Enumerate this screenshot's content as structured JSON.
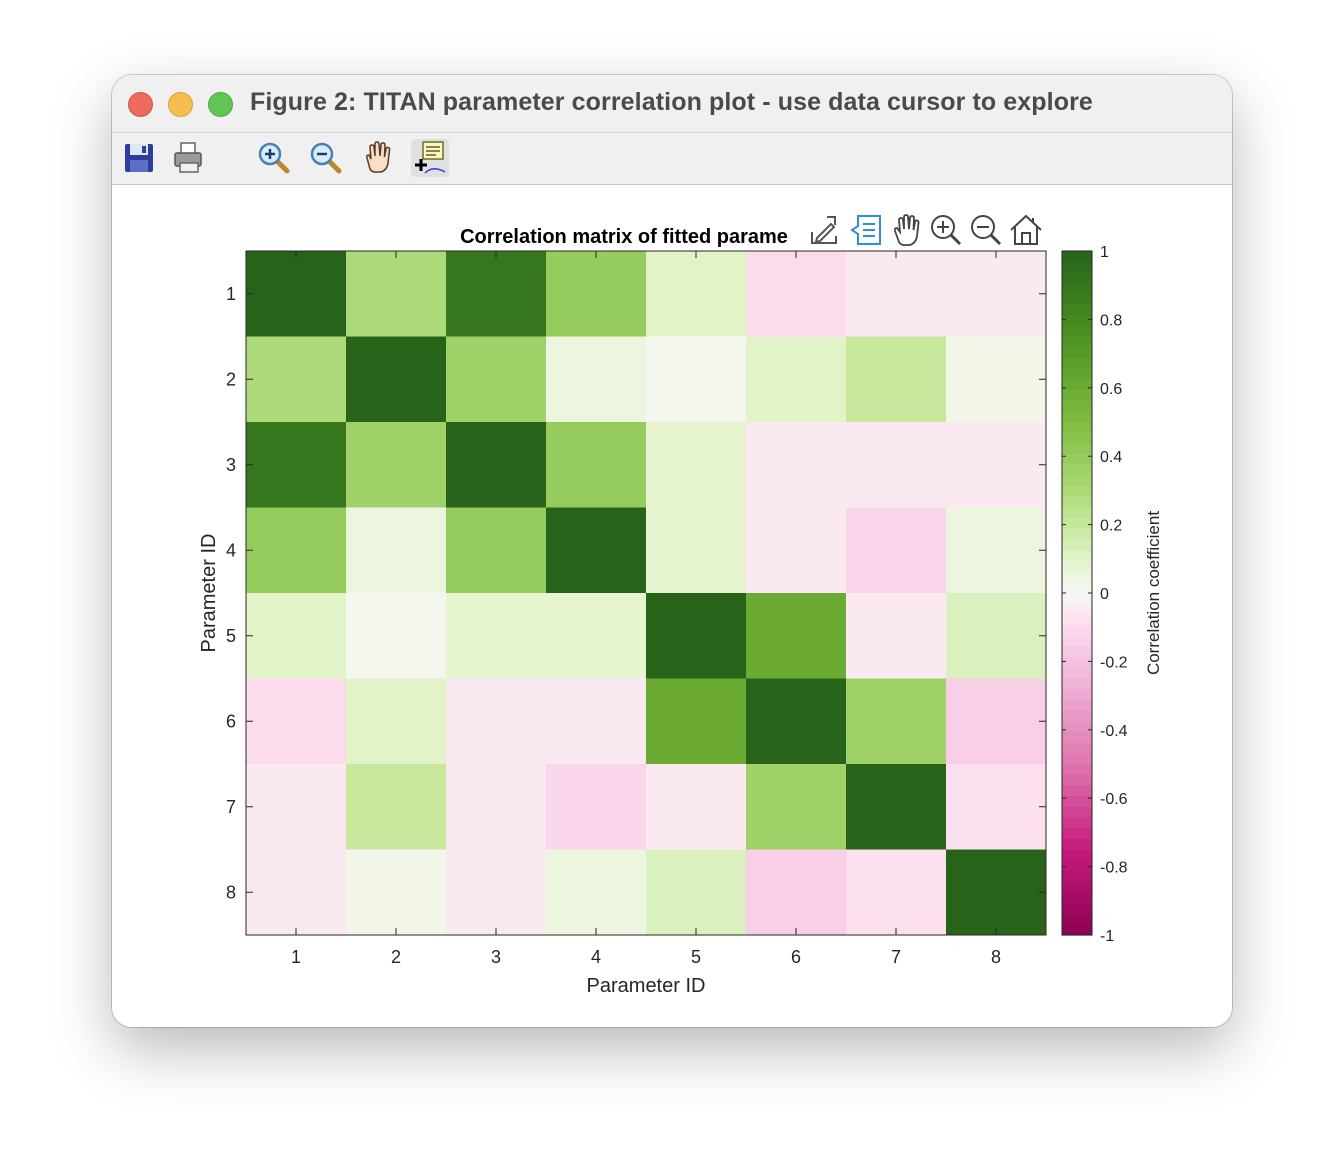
{
  "window": {
    "title": "Figure 2: TITAN parameter correlation plot - use data cursor to explore"
  },
  "toolbar": {
    "items": [
      {
        "icon": "save-icon"
      },
      {
        "icon": "print-icon"
      },
      {
        "icon": "zoom-in-icon"
      },
      {
        "icon": "zoom-out-icon"
      },
      {
        "icon": "pan-hand-icon"
      },
      {
        "icon": "data-cursor-icon"
      }
    ]
  },
  "axes_toolbar": {
    "items": [
      {
        "icon": "export-icon"
      },
      {
        "icon": "data-tips-icon"
      },
      {
        "icon": "pan-hand-icon"
      },
      {
        "icon": "zoom-in-icon"
      },
      {
        "icon": "zoom-out-icon"
      },
      {
        "icon": "home-icon"
      }
    ]
  },
  "chart_data": {
    "type": "heatmap",
    "title": "Correlation matrix of fitted parame",
    "xlabel": "Parameter ID",
    "ylabel": "Parameter ID",
    "x": [
      1,
      2,
      3,
      4,
      5,
      6,
      7,
      8
    ],
    "y": [
      1,
      2,
      3,
      4,
      5,
      6,
      7,
      8
    ],
    "values": [
      [
        1.0,
        0.3,
        0.9,
        0.4,
        0.1,
        -0.1,
        -0.05,
        -0.05
      ],
      [
        0.3,
        1.0,
        0.35,
        0.05,
        0.02,
        0.1,
        0.2,
        0.03
      ],
      [
        0.9,
        0.35,
        1.0,
        0.4,
        0.08,
        -0.05,
        -0.05,
        -0.05
      ],
      [
        0.4,
        0.05,
        0.4,
        1.0,
        0.08,
        -0.05,
        -0.12,
        0.05
      ],
      [
        0.1,
        0.02,
        0.08,
        0.08,
        1.0,
        0.6,
        -0.05,
        0.12
      ],
      [
        -0.1,
        0.1,
        -0.05,
        -0.05,
        0.6,
        1.0,
        0.35,
        -0.15
      ],
      [
        -0.05,
        0.2,
        -0.05,
        -0.12,
        -0.05,
        0.35,
        1.0,
        -0.08
      ],
      [
        -0.05,
        0.03,
        -0.05,
        0.05,
        0.12,
        -0.15,
        -0.08,
        1.0
      ]
    ],
    "colorbar": {
      "label": "Correlation coefficient",
      "range": [
        -1,
        1
      ],
      "ticks": [
        1,
        0.8,
        0.6,
        0.4,
        0.2,
        0,
        -0.2,
        -0.4,
        -0.6,
        -0.8,
        -1
      ]
    },
    "colormap": "PiYG",
    "colors": {
      "neg": "#8e0152",
      "zero": "#f7f7f7",
      "pos": "#276419"
    }
  }
}
